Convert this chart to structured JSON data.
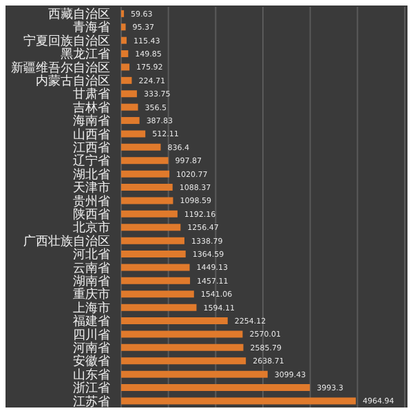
{
  "chart_data": {
    "type": "bar",
    "orientation": "horizontal",
    "categories": [
      "西藏自治区",
      "青海省",
      "宁夏回族自治区",
      "黑龙江省",
      "新疆维吾尔自治区",
      "内蒙古自治区",
      "甘肃省",
      "吉林省",
      "海南省",
      "山西省",
      "江西省",
      "辽宁省",
      "湖北省",
      "天津市",
      "贵州省",
      "陕西省",
      "北京市",
      "广西壮族自治区",
      "河北省",
      "云南省",
      "湖南省",
      "重庆市",
      "上海市",
      "福建省",
      "四川省",
      "河南省",
      "安徽省",
      "山东省",
      "浙江省",
      "江苏省"
    ],
    "values": [
      59.63,
      95.37,
      115.43,
      149.85,
      175.92,
      224.71,
      333.75,
      356.5,
      387.83,
      512.11,
      836.4,
      997.87,
      1020.77,
      1088.37,
      1098.59,
      1192.16,
      1256.47,
      1338.79,
      1364.59,
      1449.13,
      1457.11,
      1541.06,
      1594.11,
      2254.12,
      2570.01,
      2585.79,
      2638.71,
      3099.43,
      3993.3,
      4964.94
    ],
    "color": "#e07a2c",
    "data_labels": true,
    "grid": "x",
    "tick_labels": "y",
    "xlim": [
      0,
      6000
    ],
    "xticks": [
      {
        "value": 0,
        "label": null
      },
      {
        "value": 1000,
        "label": null
      },
      {
        "value": 2000,
        "label": null
      },
      {
        "value": 3000,
        "label": null
      },
      {
        "value": 4000,
        "label": null
      },
      {
        "value": 5000,
        "label": null
      },
      {
        "value": 6000,
        "label": null
      }
    ]
  }
}
